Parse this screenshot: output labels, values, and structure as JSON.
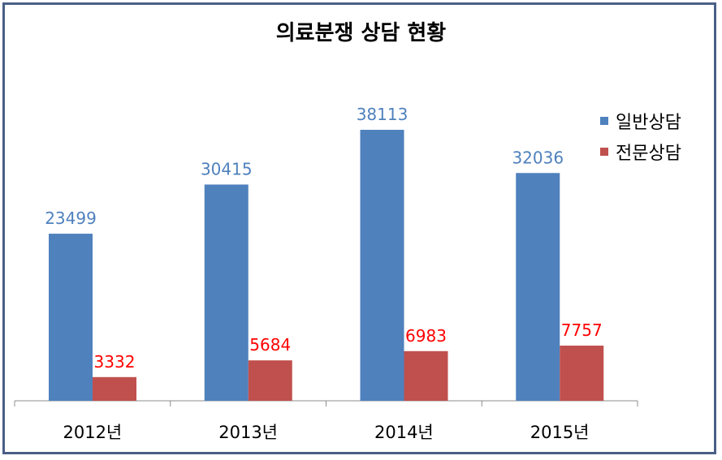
{
  "chart_data": {
    "type": "bar",
    "title": "의료분쟁 상담 현황",
    "categories": [
      "2012년",
      "2013년",
      "2014년",
      "2015년"
    ],
    "series": [
      {
        "name": "일반상담",
        "values": [
          23499,
          30415,
          38113,
          32036
        ],
        "color": "#4f81bd",
        "label_color": "#4f81bd"
      },
      {
        "name": "전문상담",
        "values": [
          3332,
          5684,
          6983,
          7757
        ],
        "color": "#c0504d",
        "label_color": "#ff0000"
      }
    ],
    "ylim": [
      0,
      44000
    ],
    "grid": false,
    "legend_position": "right"
  }
}
